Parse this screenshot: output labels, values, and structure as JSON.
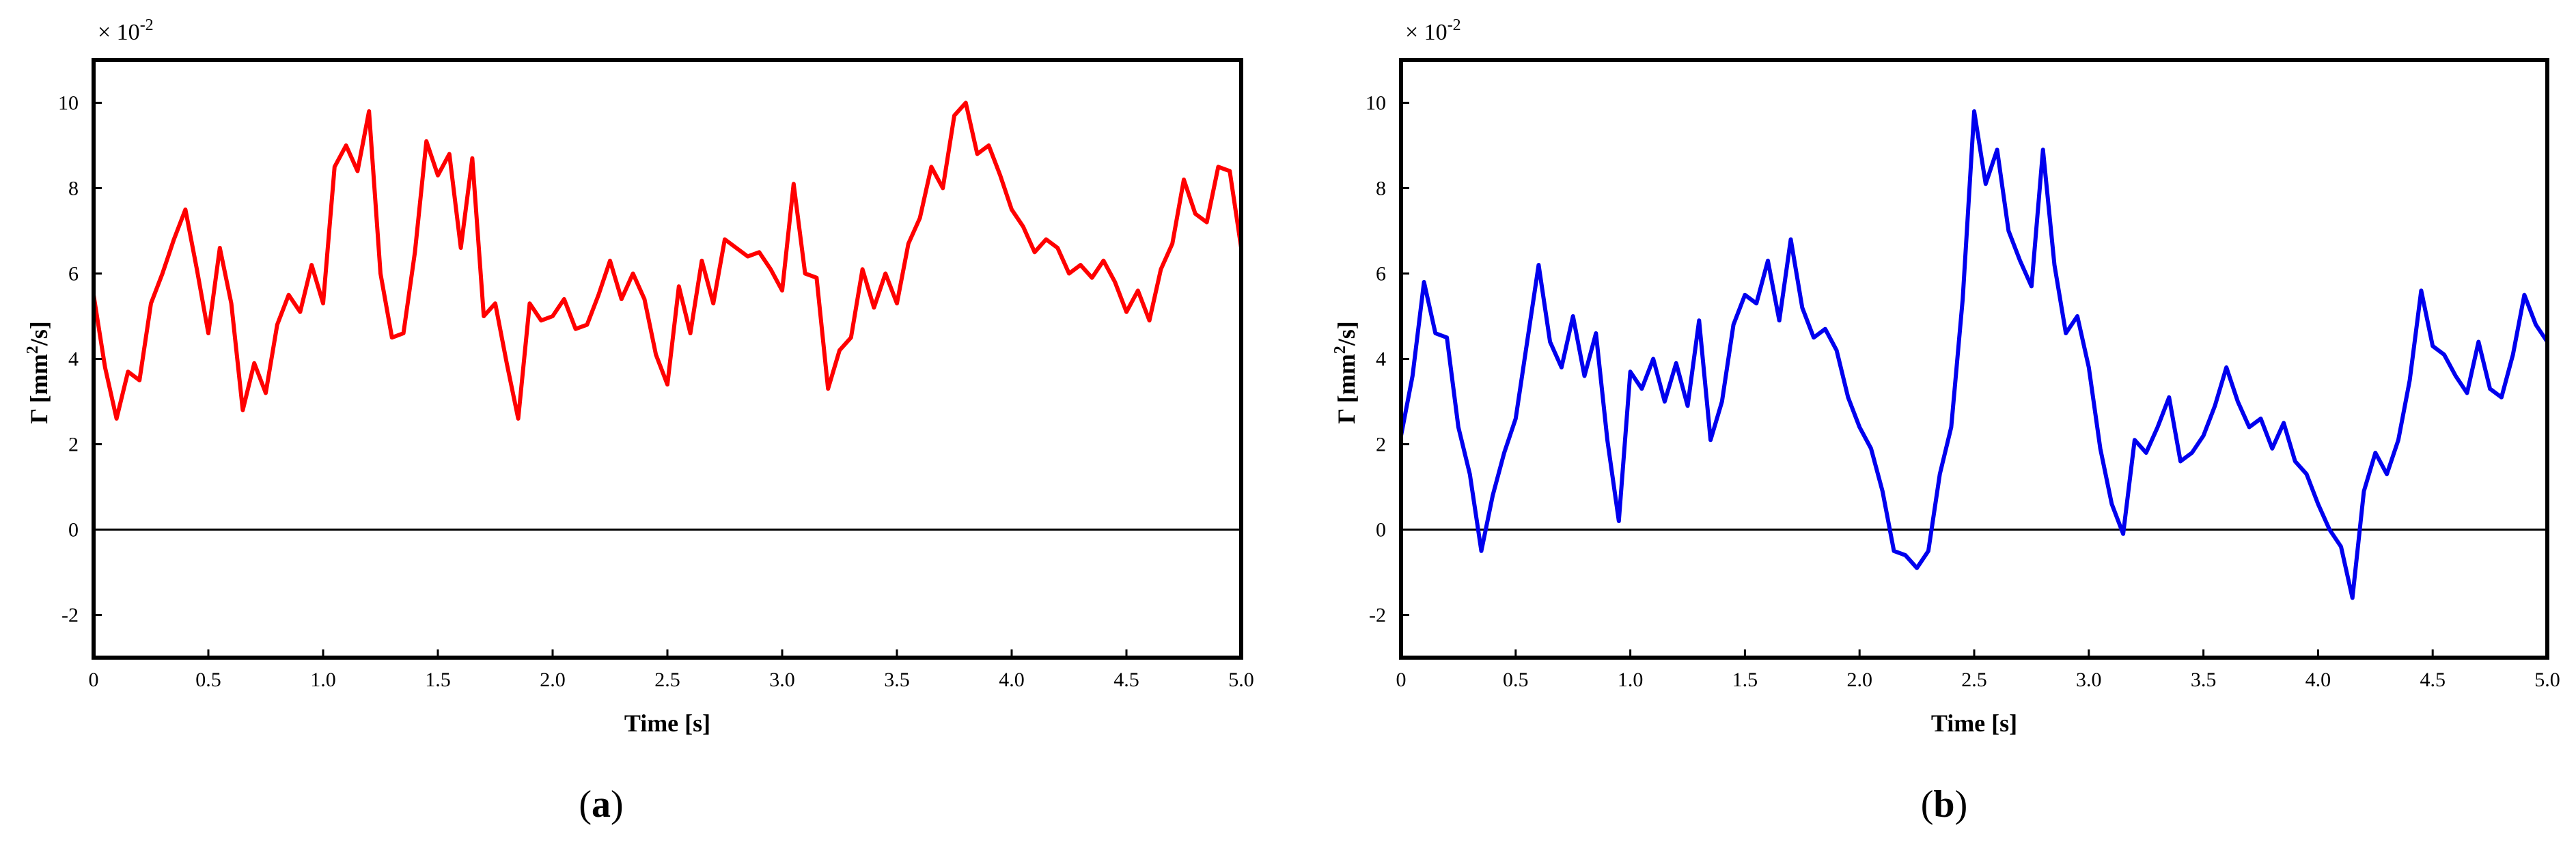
{
  "chart_data": [
    {
      "type": "line",
      "panel_label": "a",
      "xlabel": "Time  [s]",
      "ylabel_main": "Γ [mm",
      "ylabel_sup": "2",
      "ylabel_tail": "/s]",
      "multiplier_base": "× 10",
      "multiplier_exp": "-2",
      "xlim": [
        0,
        5.0
      ],
      "ylim": [
        -3,
        11
      ],
      "xticks": [
        "0",
        "0.5",
        "1.0",
        "1.5",
        "2.0",
        "2.5",
        "3.0",
        "3.5",
        "4.0",
        "4.5",
        "5.0"
      ],
      "yticks": [
        "-2",
        "0",
        "2",
        "4",
        "6",
        "8",
        "10"
      ],
      "zero_line": true,
      "color": "#ff0000",
      "x": [
        0.0,
        0.05,
        0.1,
        0.15,
        0.2,
        0.25,
        0.3,
        0.35,
        0.4,
        0.45,
        0.5,
        0.55,
        0.6,
        0.65,
        0.7,
        0.75,
        0.8,
        0.85,
        0.9,
        0.95,
        1.0,
        1.05,
        1.1,
        1.15,
        1.2,
        1.25,
        1.3,
        1.35,
        1.4,
        1.45,
        1.5,
        1.55,
        1.6,
        1.65,
        1.7,
        1.75,
        1.8,
        1.85,
        1.9,
        1.95,
        2.0,
        2.05,
        2.1,
        2.15,
        2.2,
        2.25,
        2.3,
        2.35,
        2.4,
        2.45,
        2.5,
        2.55,
        2.6,
        2.65,
        2.7,
        2.75,
        2.8,
        2.85,
        2.9,
        2.95,
        3.0,
        3.05,
        3.1,
        3.15,
        3.2,
        3.25,
        3.3,
        3.35,
        3.4,
        3.45,
        3.5,
        3.55,
        3.6,
        3.65,
        3.7,
        3.75,
        3.8,
        3.85,
        3.9,
        3.95,
        4.0,
        4.05,
        4.1,
        4.15,
        4.2,
        4.25,
        4.3,
        4.35,
        4.4,
        4.45,
        4.5,
        4.55,
        4.6,
        4.65,
        4.7,
        4.75,
        4.8,
        4.85,
        4.9,
        4.95,
        5.0
      ],
      "y": [
        5.5,
        3.8,
        2.6,
        3.7,
        3.5,
        5.3,
        6.0,
        6.8,
        7.5,
        6.1,
        4.6,
        6.6,
        5.3,
        2.8,
        3.9,
        3.2,
        4.8,
        5.5,
        5.1,
        6.2,
        5.3,
        8.5,
        9.0,
        8.4,
        9.8,
        6.0,
        4.5,
        4.6,
        6.5,
        9.1,
        8.3,
        8.8,
        6.6,
        8.7,
        5.0,
        5.3,
        3.9,
        2.6,
        5.3,
        4.9,
        5.0,
        5.4,
        4.7,
        4.8,
        5.5,
        6.3,
        5.4,
        6.0,
        5.4,
        4.1,
        3.4,
        5.7,
        4.6,
        6.3,
        5.3,
        6.8,
        6.6,
        6.4,
        6.5,
        6.1,
        5.6,
        8.1,
        6.0,
        5.9,
        3.3,
        4.2,
        4.5,
        6.1,
        5.2,
        6.0,
        5.3,
        6.7,
        7.3,
        8.5,
        8.0,
        9.7,
        10.0,
        8.8,
        9.0,
        8.3,
        7.5,
        7.1,
        6.5,
        6.8,
        6.6,
        6.0,
        6.2,
        5.9,
        6.3,
        5.8,
        5.1,
        5.6,
        4.9,
        6.1,
        6.7,
        8.2,
        7.4,
        7.2,
        8.5,
        8.4,
        6.6
      ]
    },
    {
      "type": "line",
      "panel_label": "b",
      "xlabel": "Time  [s]",
      "ylabel_main": "Γ [mm",
      "ylabel_sup": "2",
      "ylabel_tail": "/s]",
      "multiplier_base": "× 10",
      "multiplier_exp": "-2",
      "xlim": [
        0,
        5.0
      ],
      "ylim": [
        -3,
        11
      ],
      "xticks": [
        "0",
        "0.5",
        "1.0",
        "1.5",
        "2.0",
        "2.5",
        "3.0",
        "3.5",
        "4.0",
        "4.5",
        "5.0"
      ],
      "yticks": [
        "-2",
        "0",
        "2",
        "4",
        "6",
        "8",
        "10"
      ],
      "zero_line": true,
      "color": "#0000ee",
      "x": [
        0.0,
        0.05,
        0.1,
        0.15,
        0.2,
        0.25,
        0.3,
        0.35,
        0.4,
        0.45,
        0.5,
        0.55,
        0.6,
        0.65,
        0.7,
        0.75,
        0.8,
        0.85,
        0.9,
        0.95,
        1.0,
        1.05,
        1.1,
        1.15,
        1.2,
        1.25,
        1.3,
        1.35,
        1.4,
        1.45,
        1.5,
        1.55,
        1.6,
        1.65,
        1.7,
        1.75,
        1.8,
        1.85,
        1.9,
        1.95,
        2.0,
        2.05,
        2.1,
        2.15,
        2.2,
        2.25,
        2.3,
        2.35,
        2.4,
        2.45,
        2.5,
        2.55,
        2.6,
        2.65,
        2.7,
        2.75,
        2.8,
        2.85,
        2.9,
        2.95,
        3.0,
        3.05,
        3.1,
        3.15,
        3.2,
        3.25,
        3.3,
        3.35,
        3.4,
        3.45,
        3.5,
        3.55,
        3.6,
        3.65,
        3.7,
        3.75,
        3.8,
        3.85,
        3.9,
        3.95,
        4.0,
        4.05,
        4.1,
        4.15,
        4.2,
        4.25,
        4.3,
        4.35,
        4.4,
        4.45,
        4.5,
        4.55,
        4.6,
        4.65,
        4.7,
        4.75,
        4.8,
        4.85,
        4.9,
        4.95,
        5.0
      ],
      "y": [
        2.2,
        3.6,
        5.8,
        4.6,
        4.5,
        2.4,
        1.3,
        -0.5,
        0.8,
        1.8,
        2.6,
        4.4,
        6.2,
        4.4,
        3.8,
        5.0,
        3.6,
        4.6,
        2.1,
        0.2,
        3.7,
        3.3,
        4.0,
        3.0,
        3.9,
        2.9,
        4.9,
        2.1,
        3.0,
        4.8,
        5.5,
        5.3,
        6.3,
        4.9,
        6.8,
        5.2,
        4.5,
        4.7,
        4.2,
        3.1,
        2.4,
        1.9,
        0.9,
        -0.5,
        -0.6,
        -0.9,
        -0.5,
        1.3,
        2.4,
        5.4,
        9.8,
        8.1,
        8.9,
        7.0,
        6.3,
        5.7,
        8.9,
        6.2,
        4.6,
        5.0,
        3.8,
        1.9,
        0.6,
        -0.1,
        2.1,
        1.8,
        2.4,
        3.1,
        1.6,
        1.8,
        2.2,
        2.9,
        3.8,
        3.0,
        2.4,
        2.6,
        1.9,
        2.5,
        1.6,
        1.3,
        0.6,
        0.0,
        -0.4,
        -1.6,
        0.9,
        1.8,
        1.3,
        2.1,
        3.5,
        5.6,
        4.3,
        4.1,
        3.6,
        3.2,
        4.4,
        3.3,
        3.1,
        4.1,
        5.5,
        4.8,
        4.4
      ]
    }
  ]
}
